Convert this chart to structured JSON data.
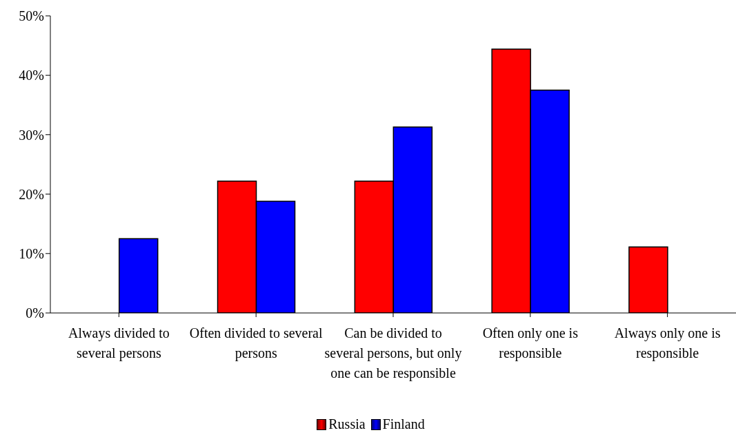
{
  "chart_data": {
    "type": "bar",
    "categories": [
      "Always divided to several persons",
      "Often divided to several persons",
      "Can be divided to several persons, but only one can be responsible",
      "Often only one is responsible",
      "Always only one is responsible"
    ],
    "series": [
      {
        "name": "Russia",
        "color": "#ff0000",
        "values": [
          0,
          22.2,
          22.2,
          44.4,
          11.1
        ]
      },
      {
        "name": "Finland",
        "color": "#0000ff",
        "values": [
          12.5,
          18.8,
          31.3,
          37.5,
          0
        ]
      }
    ],
    "ylim": [
      0,
      50
    ],
    "yticks": [
      {
        "value": 0,
        "label": "0%"
      },
      {
        "value": 10,
        "label": "10%"
      },
      {
        "value": 20,
        "label": "20%"
      },
      {
        "value": 30,
        "label": "30%"
      },
      {
        "value": 40,
        "label": "40%"
      },
      {
        "value": 50,
        "label": "50%"
      }
    ],
    "grid": false,
    "legend": "bottom"
  }
}
